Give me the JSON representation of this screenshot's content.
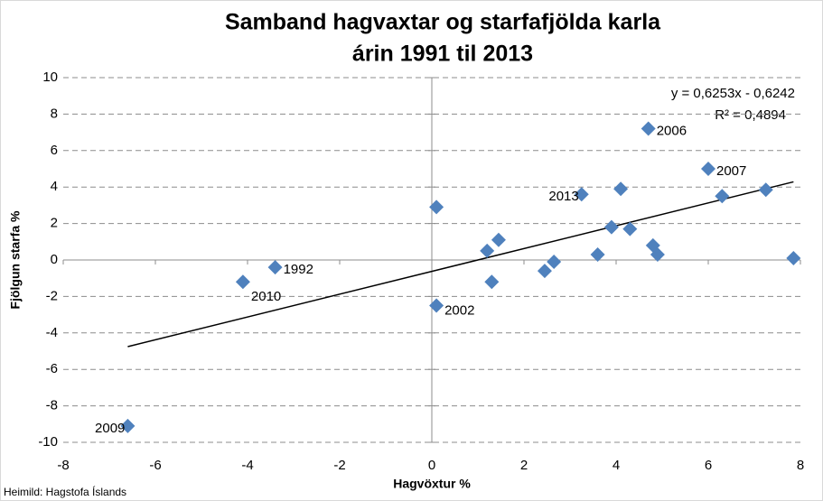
{
  "chart_data": {
    "type": "scatter",
    "title": [
      "Samband hagvaxtar og starfafjölda karla",
      "árin 1991 til 2013"
    ],
    "xlabel": "Hagvöxtur %",
    "ylabel": "Fjölgun starfa %",
    "source": "Heimild: Hagstofa Íslands",
    "color": "#4f81bd",
    "x": [
      -6.6,
      -4.1,
      -3.4,
      0.1,
      0.1,
      1.2,
      1.45,
      1.3,
      2.45,
      2.65,
      3.25,
      3.6,
      3.9,
      4.1,
      4.3,
      4.7,
      4.8,
      4.9,
      6.0,
      6.3,
      7.25,
      7.85
    ],
    "values": [
      -9.1,
      -1.2,
      -0.4,
      2.9,
      -2.5,
      0.5,
      1.1,
      -1.2,
      -0.6,
      -0.1,
      3.6,
      0.3,
      1.8,
      3.9,
      1.7,
      7.2,
      0.8,
      0.3,
      5.0,
      3.5,
      3.85,
      0.1
    ],
    "point_labels": [
      "2009",
      "2010",
      "1992",
      null,
      "2002",
      null,
      null,
      null,
      null,
      null,
      "2013",
      null,
      null,
      null,
      null,
      "2006",
      null,
      null,
      "2007",
      null,
      null,
      null
    ],
    "trendline": {
      "slope": 0.6253,
      "intercept": -0.6242,
      "r_squared": 0.4894,
      "equation": "y = 0,6253x - 0,6242",
      "r_squared_label": "R² = 0,4894",
      "color": "#000000"
    },
    "xlim": [
      -8,
      8
    ],
    "xticks": [
      -8,
      -6,
      -4,
      -2,
      0,
      2,
      4,
      6,
      8
    ],
    "ylim": [
      -10,
      10
    ],
    "yticks": [
      -10,
      -8,
      -6,
      -4,
      -2,
      0,
      2,
      4,
      6,
      8,
      10
    ],
    "grid": true
  }
}
